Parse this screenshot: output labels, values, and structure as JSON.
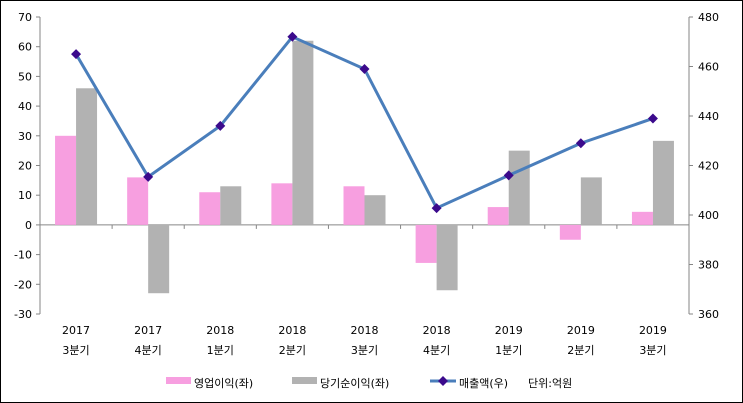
{
  "chart_data": {
    "type": "bar+line",
    "categories": [
      [
        "2017",
        "3분기"
      ],
      [
        "2017",
        "4분기"
      ],
      [
        "2018",
        "1분기"
      ],
      [
        "2018",
        "2분기"
      ],
      [
        "2018",
        "3분기"
      ],
      [
        "2018",
        "4분기"
      ],
      [
        "2019",
        "1분기"
      ],
      [
        "2019",
        "2분기"
      ],
      [
        "2019",
        "3분기"
      ]
    ],
    "left_axis": {
      "min": -30,
      "max": 70,
      "step": 10
    },
    "right_axis": {
      "min": 360,
      "max": 480,
      "step": 20
    },
    "series": [
      {
        "name": "영업이익(좌)",
        "type": "bar",
        "axis": "left",
        "color": "#f79fe0",
        "values": [
          30,
          16,
          11,
          14,
          13,
          -12.8,
          6,
          -5,
          4.4
        ]
      },
      {
        "name": "당기순이익(좌)",
        "type": "bar",
        "axis": "left",
        "color": "#b2b2b2",
        "values": [
          46,
          -23,
          13,
          62,
          10,
          -22,
          25,
          16,
          28.3
        ]
      },
      {
        "name": "매출액(우)",
        "type": "line",
        "axis": "right",
        "color": "#4a7ebb",
        "marker_color": "#3b0a8c",
        "values": [
          465,
          415.4,
          436,
          472,
          459,
          402.8,
          416,
          429,
          439
        ]
      }
    ],
    "legend_note": "단위:억원",
    "legend_position": "bottom",
    "grid": false
  }
}
